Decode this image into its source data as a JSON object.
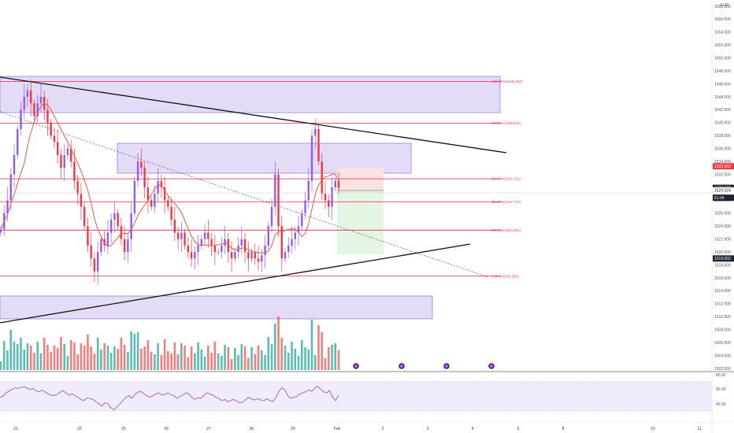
{
  "currency": "EUR",
  "colors": {
    "up": "#26a69a",
    "down": "#ef5350",
    "candle_up": "#8e5cf5",
    "candle_down": "#f23645",
    "ma": "#f05a3c",
    "fib": "#f23a66",
    "zone_fill": "#e4dcf6",
    "zone_stroke": "#9c7fe0",
    "trend": "#111111",
    "rsi": "#9b5ad3",
    "rsi_band": "#f1ecfb",
    "tp": "#e4f5e3",
    "sl": "#fde1e3"
  },
  "price_axis": {
    "min": 1502,
    "max": 1558,
    "ticks": [
      "1558.000",
      "1556.000",
      "1554.000",
      "1552.000",
      "1550.000",
      "1548.000",
      "1546.000",
      "1544.000",
      "1542.000",
      "1540.000",
      "1538.000",
      "1536.000",
      "1534.000",
      "1532.000",
      "1530.000",
      "1528.000",
      "1526.000",
      "1524.000",
      "1522.000",
      "1520.000",
      "1518.000",
      "1516.000",
      "1514.000",
      "1512.000",
      "1510.000",
      "1508.000",
      "1506.000",
      "1504.000",
      "1502.000"
    ]
  },
  "price_tags": [
    {
      "label": "1533.262",
      "price": 1533.262,
      "bg": "#f23645",
      "fg": "#ffffff"
    },
    {
      "label": "1529.927",
      "price": 1529.927,
      "bg": "#1e2233",
      "fg": "#ffffff"
    },
    {
      "label": "1529.524",
      "price": 1529.524,
      "bg": "#ffffff",
      "fg": "#111111"
    },
    {
      "label": "51:04",
      "price": 1528.4,
      "bg": "#1e2233",
      "fg": "#ffffff"
    },
    {
      "label": "1519.002",
      "price": 1519.002,
      "bg": "#1e2233",
      "fg": "#ffffff"
    }
  ],
  "date_axis": [
    "21",
    "22",
    "25",
    "26",
    "27",
    "28",
    "29",
    "Feb",
    "2",
    "3",
    "4",
    "5",
    "8",
    "10",
    "11"
  ],
  "fib_levels": [
    {
      "label": "100.00%(1546.362)",
      "price": 1546.362
    },
    {
      "label": "78.60%(1539.924)",
      "price": 1539.924
    },
    {
      "label": "50.00%(1531.322)",
      "price": 1531.322
    },
    {
      "label": "38.20%(1527.772)",
      "price": 1527.772
    },
    {
      "label": "23.60%(1523.381)",
      "price": 1523.381
    },
    {
      "label": "0.00%(1516.282)",
      "price": 1516.282
    }
  ],
  "rsi": {
    "ticks": [
      "80.00",
      "60.00",
      "40.00"
    ],
    "values": [
      52,
      54,
      60,
      63,
      66,
      69,
      68,
      70,
      71,
      69,
      66,
      68,
      64,
      62,
      65,
      62,
      58,
      56,
      55,
      57,
      61,
      64,
      60,
      56,
      58,
      55,
      52,
      48,
      46,
      51,
      50,
      48,
      44,
      40,
      36,
      42,
      40,
      33,
      29,
      34,
      40,
      46,
      52,
      55,
      50,
      57,
      61,
      63,
      58,
      55,
      52,
      55,
      58,
      60,
      56,
      57,
      60,
      57,
      55,
      50,
      53,
      56,
      60,
      58,
      52,
      48,
      51,
      50,
      55,
      60,
      58,
      56,
      52,
      50,
      46,
      48,
      44,
      46,
      48,
      45,
      42,
      43,
      48,
      52,
      49,
      47,
      50,
      47,
      46,
      49,
      46,
      44,
      51,
      62,
      69,
      66,
      55,
      50,
      52,
      53,
      58,
      60,
      62,
      65,
      63,
      68,
      72,
      66,
      62,
      60,
      64,
      52,
      46,
      56
    ]
  },
  "events": [
    "event-marker",
    "event-marker",
    "event-marker",
    "event-marker"
  ],
  "chart_data": {
    "type": "candlestick",
    "symbol_currency": "EUR",
    "x_labels": [
      "21",
      "22",
      "25",
      "26",
      "27",
      "28",
      "29",
      "Feb",
      "2",
      "3",
      "4",
      "5",
      "8",
      "10",
      "11"
    ],
    "ylim": [
      1502,
      1558
    ],
    "last_price": 1529.927,
    "closes": [
      1523.5,
      1526,
      1528,
      1532,
      1535,
      1539,
      1542,
      1544,
      1545,
      1543,
      1541,
      1543,
      1544,
      1542,
      1540,
      1538,
      1537,
      1535,
      1533,
      1535,
      1536,
      1534,
      1531,
      1529,
      1527,
      1524,
      1521,
      1519,
      1517,
      1520,
      1522,
      1521,
      1523,
      1525,
      1526,
      1524,
      1522,
      1520,
      1522,
      1526,
      1531,
      1534,
      1533,
      1530,
      1528,
      1527,
      1529,
      1531,
      1530,
      1528,
      1527,
      1525,
      1523,
      1522,
      1523,
      1521,
      1520,
      1519,
      1520,
      1521,
      1522,
      1523,
      1522,
      1521,
      1520,
      1520,
      1521,
      1522,
      1520,
      1519,
      1520,
      1521,
      1522,
      1520,
      1519,
      1520,
      1519,
      1518.5,
      1519.5,
      1521,
      1524,
      1527,
      1532,
      1524,
      1519,
      1520,
      1521,
      1522,
      1523,
      1524,
      1526,
      1528,
      1531,
      1538,
      1539,
      1534,
      1529,
      1528,
      1527,
      1530,
      1531,
      1529.927
    ],
    "moving_average": "orange line",
    "volume": "histogram bars (green up / red down)",
    "fib_retracement": [
      1546.362,
      1539.924,
      1531.322,
      1527.772,
      1523.381,
      1516.282
    ],
    "long_position": {
      "entry": 1529.5,
      "stop": 1533.262,
      "target": 1519.002
    }
  }
}
